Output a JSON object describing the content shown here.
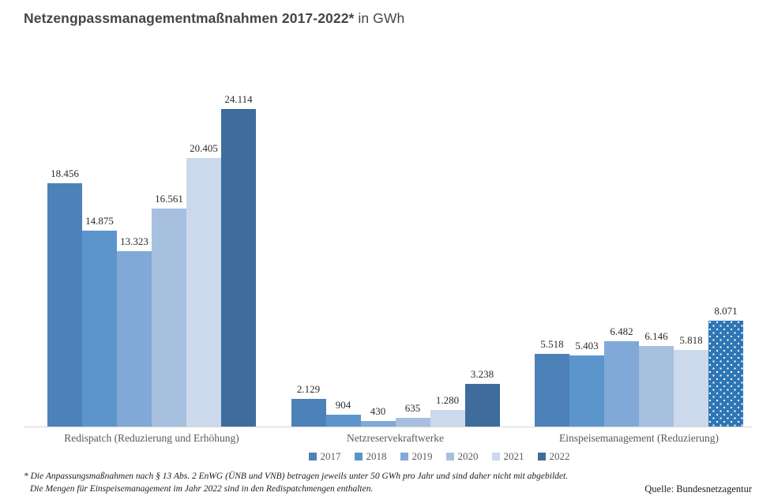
{
  "title": {
    "bold": "Netzengpassmanagementmaßnahmen 2017-2022*",
    "regular": " in GWh"
  },
  "chart_data": {
    "type": "bar",
    "title": "Netzengpassmanagementmaßnahmen 2017-2022* in GWh",
    "unit": "GWh",
    "grid": false,
    "legend_position": "bottom",
    "ylim": [
      0,
      25000
    ],
    "categories": [
      "Redispatch (Reduzierung und Erhöhung)",
      "Netzreservekraftwerke",
      "Einspeisemanagement (Reduzierung)"
    ],
    "series": [
      {
        "name": "2017",
        "color": "#4d82b8",
        "values": [
          18456,
          2129,
          5518
        ],
        "labels": [
          "18.456",
          "2.129",
          "5.518"
        ]
      },
      {
        "name": "2018",
        "color": "#5c95cc",
        "values": [
          14875,
          904,
          5403
        ],
        "labels": [
          "14.875",
          "904",
          "5.403"
        ]
      },
      {
        "name": "2019",
        "color": "#80a9d7",
        "values": [
          13323,
          430,
          6482
        ],
        "labels": [
          "13.323",
          "430",
          "6.482"
        ]
      },
      {
        "name": "2020",
        "color": "#a7c0e0",
        "values": [
          16561,
          635,
          6146
        ],
        "labels": [
          "16.561",
          "635",
          "6.146"
        ]
      },
      {
        "name": "2021",
        "color": "#ccd8eb",
        "values": [
          20405,
          1280,
          5818
        ],
        "labels": [
          "20.405",
          "1.280",
          "5.818"
        ]
      },
      {
        "name": "2022",
        "color": "#3e6d9c",
        "values": [
          24114,
          3238,
          8071
        ],
        "labels": [
          "24.114",
          "3.238",
          "8.071"
        ]
      }
    ],
    "pattern_cells": [
      {
        "series": "2022",
        "category_index": 2,
        "pattern": "white-dots",
        "background": "#2e76b5",
        "dot_color": "#ffffff"
      }
    ]
  },
  "footnote": {
    "line1": "* Die Anpassungsmaßnahmen nach § 13 Abs. 2 EnWG (ÜNB und VNB) betragen jeweils unter 50 GWh pro Jahr und sind daher nicht mit abgebildet.",
    "line2": "Die Mengen für Einspeisemanagement im Jahr 2022 sind in den Redispatchmengen enthalten."
  },
  "source": "Quelle: Bundesnetzagentur"
}
